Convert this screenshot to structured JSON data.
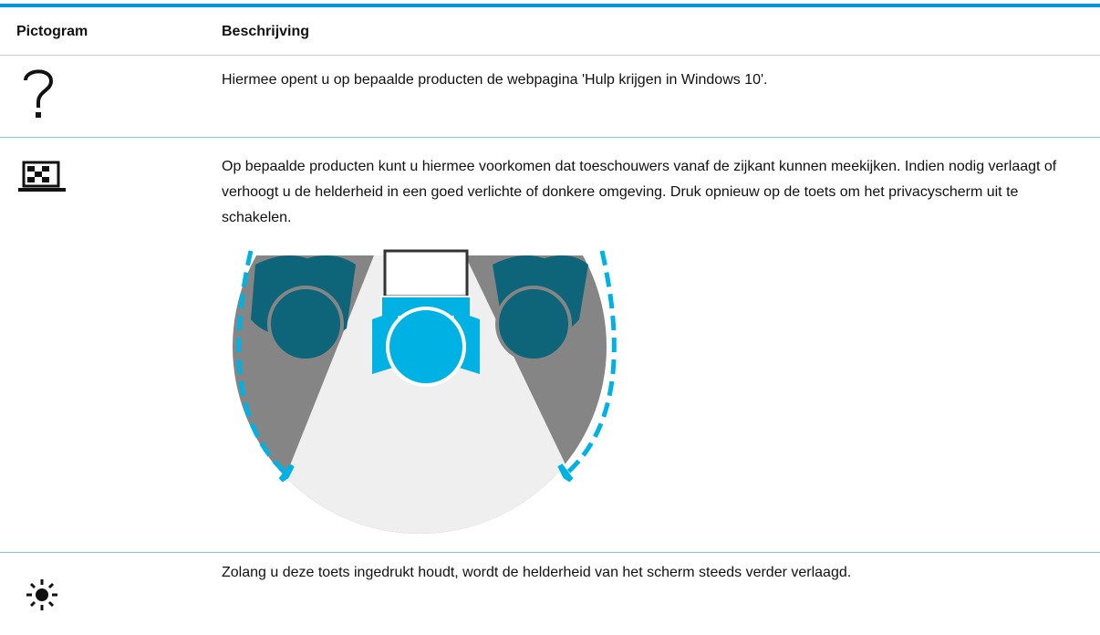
{
  "header": {
    "columns": [
      "Pictogram",
      "Beschrijving"
    ]
  },
  "table": {
    "rows": [
      {
        "description": "Hiermee opent u op bepaalde producten de webpagina 'Hulp krijgen in Windows 10'."
      },
      {
        "description": "Op bepaalde producten kunt u hiermee voorkomen dat toeschouwers vanaf de zijkant kunnen meekijken. Indien nodig verlaagt of verhoogt u de helderheid in een goed verlichte of donkere omgeving. Druk opnieuw op de toets om het privacyscherm uit te schakelen."
      },
      {
        "description": "Zolang u deze toets ingedrukt houdt, wordt de helderheid van het scherm steeds verder verlaagd."
      }
    ]
  }
}
